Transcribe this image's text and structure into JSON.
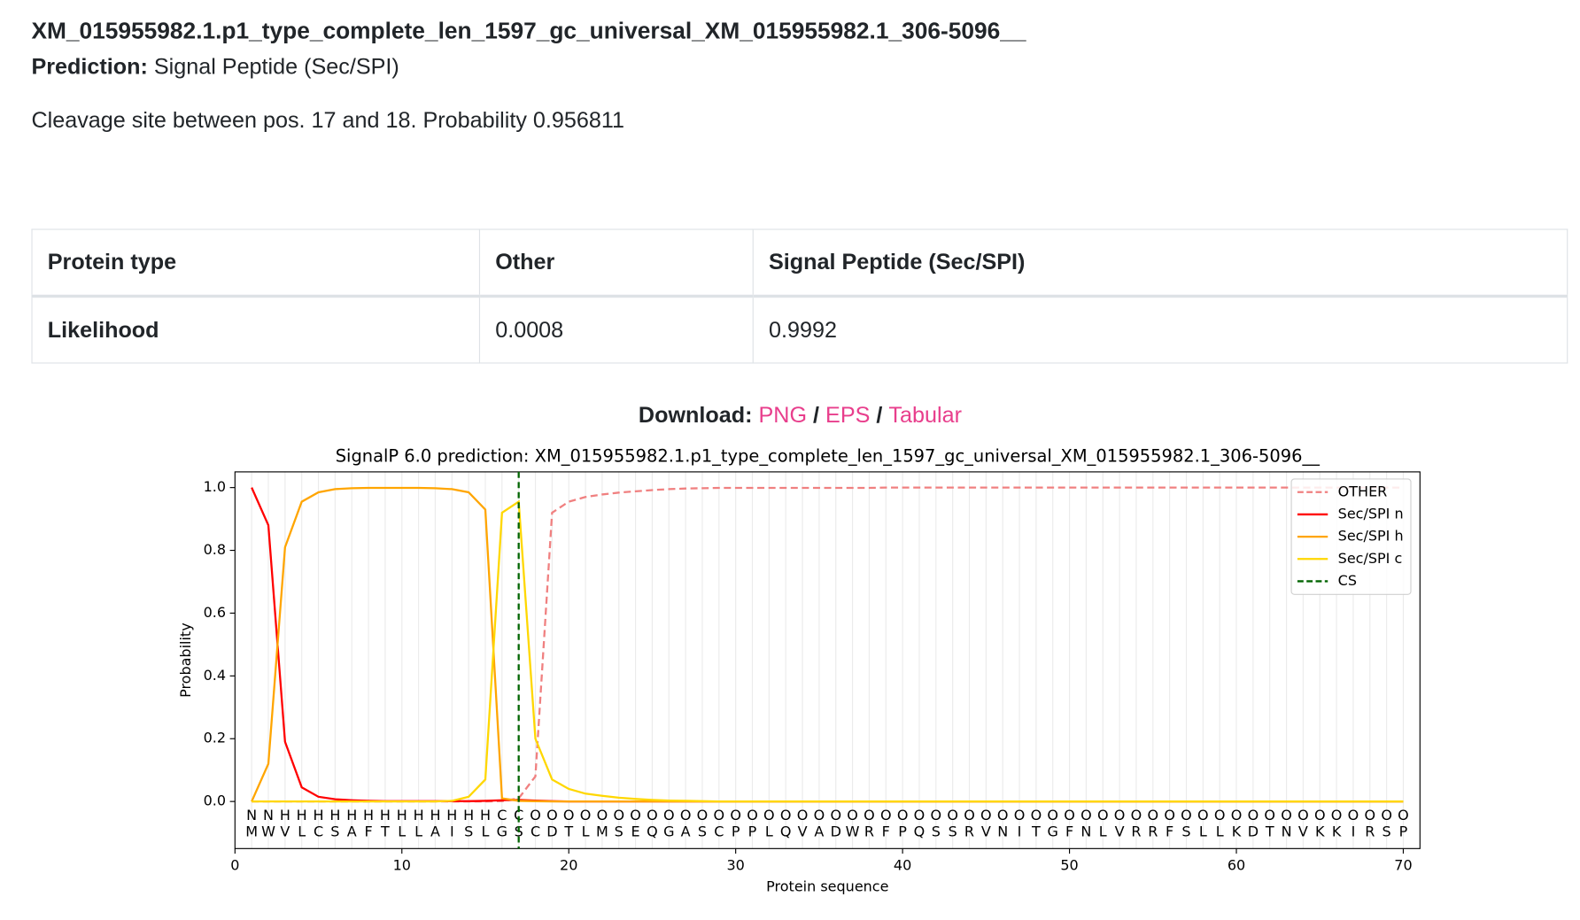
{
  "header": {
    "title": "XM_015955982.1.p1_type_complete_len_1597_gc_universal_XM_015955982.1_306-5096__",
    "prediction_label": "Prediction:",
    "prediction": "Signal Peptide (Sec/SPI)",
    "cleavage": "Cleavage site between pos. 17 and 18. Probability 0.956811"
  },
  "table": {
    "header": [
      "Protein type",
      "Other",
      "Signal Peptide (Sec/SPI)"
    ],
    "rows": [
      [
        "Likelihood",
        0.0008,
        0.9992
      ]
    ]
  },
  "download": {
    "label": "Download:",
    "separator": "/",
    "links": [
      "PNG",
      "EPS",
      "Tabular"
    ]
  },
  "chart_data": {
    "type": "line",
    "title": "SignalP 6.0 prediction: XM_015955982.1.p1_type_complete_len_1597_gc_universal_XM_015955982.1_306-5096__",
    "xlabel": "Protein sequence",
    "ylabel": "Probability",
    "x": [
      1,
      2,
      3,
      4,
      5,
      6,
      7,
      8,
      9,
      10,
      11,
      12,
      13,
      14,
      15,
      16,
      17,
      18,
      19,
      20,
      21,
      22,
      23,
      24,
      25,
      26,
      27,
      28,
      29,
      30,
      31,
      32,
      33,
      34,
      35,
      36,
      37,
      38,
      39,
      40,
      41,
      42,
      43,
      44,
      45,
      46,
      47,
      48,
      49,
      50,
      51,
      52,
      53,
      54,
      55,
      56,
      57,
      58,
      59,
      60,
      61,
      62,
      63,
      64,
      65,
      66,
      67,
      68,
      69,
      70
    ],
    "sequence": [
      "M",
      "W",
      "V",
      "L",
      "C",
      "S",
      "A",
      "F",
      "T",
      "L",
      "L",
      "A",
      "I",
      "S",
      "L",
      "G",
      "S",
      "C",
      "D",
      "T",
      "L",
      "M",
      "S",
      "E",
      "Q",
      "G",
      "A",
      "S",
      "C",
      "P",
      "P",
      "L",
      "Q",
      "V",
      "A",
      "D",
      "W",
      "R",
      "F",
      "P",
      "Q",
      "S",
      "S",
      "R",
      "V",
      "N",
      "I",
      "T",
      "G",
      "F",
      "N",
      "L",
      "V",
      "R",
      "R",
      "F",
      "S",
      "L",
      "L",
      "K",
      "D",
      "T",
      "N",
      "V",
      "K",
      "K",
      "I",
      "R",
      "S",
      "P"
    ],
    "regions": [
      "N",
      "N",
      "H",
      "H",
      "H",
      "H",
      "H",
      "H",
      "H",
      "H",
      "H",
      "H",
      "H",
      "H",
      "H",
      "C",
      "C",
      "O",
      "O",
      "O",
      "O",
      "O",
      "O",
      "O",
      "O",
      "O",
      "O",
      "O",
      "O",
      "O",
      "O",
      "O",
      "O",
      "O",
      "O",
      "O",
      "O",
      "O",
      "O",
      "O",
      "O",
      "O",
      "O",
      "O",
      "O",
      "O",
      "O",
      "O",
      "O",
      "O",
      "O",
      "O",
      "O",
      "O",
      "O",
      "O",
      "O",
      "O",
      "O",
      "O",
      "O",
      "O",
      "O",
      "O",
      "O",
      "O",
      "O",
      "O",
      "O",
      "O"
    ],
    "region_colors": {
      "N": "#ff0000",
      "H": "#ffa500",
      "C": "#ffd700",
      "O": "#808080"
    },
    "series": [
      {
        "name": "OTHER",
        "color": "#f08080",
        "dashed": true,
        "values": [
          0,
          0,
          0,
          0,
          0,
          0,
          0,
          0,
          0,
          0,
          0,
          0,
          0,
          0,
          0,
          0.001,
          0.01,
          0.08,
          0.92,
          0.955,
          0.97,
          0.978,
          0.984,
          0.988,
          0.992,
          0.995,
          0.997,
          0.998,
          0.999,
          0.999,
          0.999,
          0.999,
          0.999,
          0.999,
          0.999,
          0.999,
          0.999,
          0.999,
          1,
          1,
          1,
          1,
          1,
          1,
          1,
          1,
          1,
          1,
          1,
          1,
          1,
          1,
          1,
          1,
          1,
          1,
          1,
          1,
          1,
          1,
          1,
          1,
          1,
          1,
          1,
          1,
          1,
          1,
          1,
          1
        ]
      },
      {
        "name": "Sec/SPI n",
        "color": "#ff0000",
        "dashed": false,
        "values": [
          1,
          0.88,
          0.19,
          0.045,
          0.015,
          0.007,
          0.004,
          0.002,
          0.001,
          0.001,
          0.001,
          0.001,
          0.001,
          0.001,
          0.002,
          0.004,
          0.005,
          0.003,
          0.001,
          0,
          0,
          0,
          0,
          0,
          0,
          0,
          0,
          0,
          0,
          0,
          0,
          0,
          0,
          0,
          0,
          0,
          0,
          0,
          0,
          0,
          0,
          0,
          0,
          0,
          0,
          0,
          0,
          0,
          0,
          0,
          0,
          0,
          0,
          0,
          0,
          0,
          0,
          0,
          0,
          0,
          0,
          0,
          0,
          0,
          0,
          0,
          0,
          0,
          0,
          0
        ]
      },
      {
        "name": "Sec/SPI h",
        "color": "#ffa500",
        "dashed": false,
        "values": [
          0,
          0.12,
          0.81,
          0.955,
          0.985,
          0.995,
          0.998,
          0.999,
          0.999,
          0.999,
          0.999,
          0.998,
          0.995,
          0.985,
          0.93,
          0.01,
          0.002,
          0.001,
          0,
          0,
          0,
          0,
          0,
          0,
          0,
          0,
          0,
          0,
          0,
          0,
          0,
          0,
          0,
          0,
          0,
          0,
          0,
          0,
          0,
          0,
          0,
          0,
          0,
          0,
          0,
          0,
          0,
          0,
          0,
          0,
          0,
          0,
          0,
          0,
          0,
          0,
          0,
          0,
          0,
          0,
          0,
          0,
          0,
          0,
          0,
          0,
          0,
          0,
          0,
          0
        ]
      },
      {
        "name": "Sec/SPI c",
        "color": "#ffd700",
        "dashed": false,
        "values": [
          0,
          0,
          0,
          0,
          0,
          0,
          0,
          0,
          0,
          0,
          0,
          0,
          0.002,
          0.015,
          0.07,
          0.92,
          0.955,
          0.2,
          0.07,
          0.04,
          0.025,
          0.018,
          0.012,
          0.008,
          0.005,
          0.003,
          0.002,
          0.001,
          0,
          0,
          0,
          0,
          0,
          0,
          0,
          0,
          0,
          0,
          0,
          0,
          0,
          0,
          0,
          0,
          0,
          0,
          0,
          0,
          0,
          0,
          0,
          0,
          0,
          0,
          0,
          0,
          0,
          0,
          0,
          0,
          0,
          0,
          0,
          0,
          0,
          0,
          0,
          0,
          0,
          0
        ]
      }
    ],
    "cleavage_marker": {
      "name": "CS",
      "color": "#006400",
      "x": 17
    },
    "xlim": [
      0,
      71
    ],
    "ylim": [
      -0.15,
      1.05
    ],
    "xticks": [
      0,
      10,
      20,
      30,
      40,
      50,
      60,
      70
    ],
    "yticks": [
      {
        "value": 0,
        "label": "0.0"
      },
      0.2,
      0.4,
      0.6,
      0.8,
      {
        "value": 1,
        "label": "1.0"
      }
    ],
    "grid": true,
    "legend": "upper right"
  }
}
